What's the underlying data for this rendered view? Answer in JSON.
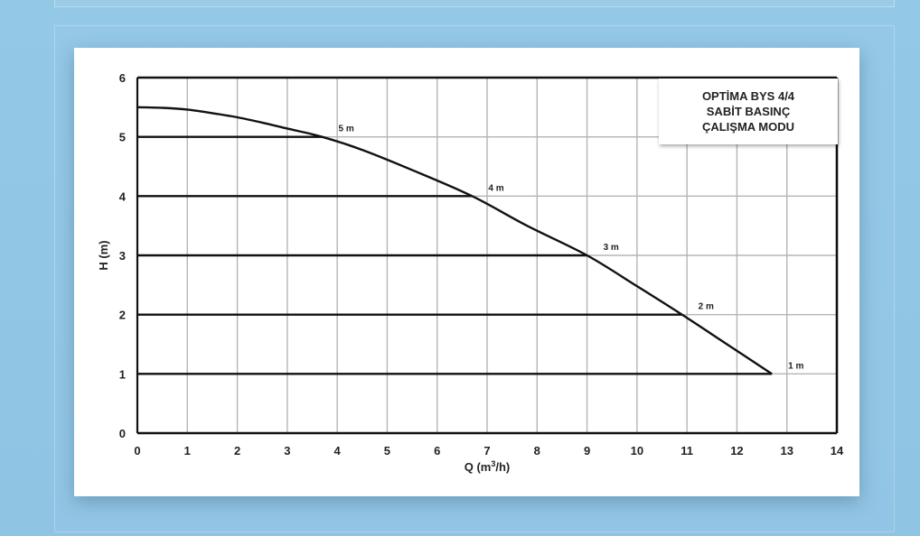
{
  "chart_data": {
    "type": "line",
    "title_lines": [
      "OPTİMA BYS 4/4",
      "SABİT BASINÇ",
      "ÇALIŞMA MODU"
    ],
    "xlabel": "Q (m",
    "xlabel_sup": "3",
    "xlabel_tail": "/h)",
    "ylabel": "H (m)",
    "xlim": [
      0,
      14
    ],
    "ylim": [
      0,
      6
    ],
    "x_ticks": [
      0,
      1,
      2,
      3,
      4,
      5,
      6,
      7,
      8,
      9,
      10,
      11,
      12,
      13,
      14
    ],
    "y_ticks": [
      0,
      1,
      2,
      3,
      4,
      5,
      6
    ],
    "grid": true,
    "curve": {
      "x": [
        0,
        0.5,
        1,
        1.5,
        2,
        2.5,
        3,
        3.7,
        4.5,
        5.5,
        6.7,
        7.8,
        9.0,
        10.0,
        10.9,
        11.8,
        12.7
      ],
      "y": [
        5.5,
        5.49,
        5.46,
        5.4,
        5.33,
        5.24,
        5.14,
        5.0,
        4.78,
        4.44,
        4.0,
        3.5,
        3.0,
        2.48,
        2.0,
        1.5,
        1.0
      ]
    },
    "constant_pressure_lines": [
      {
        "label": "5 m",
        "h": 5,
        "q_end": 3.7
      },
      {
        "label": "4 m",
        "h": 4,
        "q_end": 6.7
      },
      {
        "label": "3 m",
        "h": 3,
        "q_end": 9.0
      },
      {
        "label": "2 m",
        "h": 2,
        "q_end": 10.9
      },
      {
        "label": "1 m",
        "h": 1,
        "q_end": 12.7
      }
    ]
  }
}
